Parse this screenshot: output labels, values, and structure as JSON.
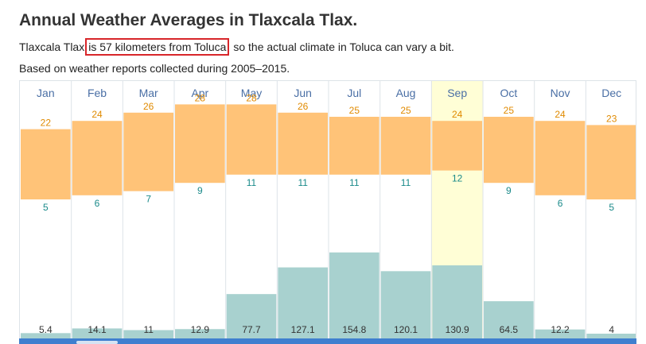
{
  "page": {
    "title": "Annual Weather Averages in Tlaxcala Tlax.",
    "line1_prefix": "Tlaxcala Tlax",
    "line1_link": "is 57 kilometers from Toluca",
    "line1_suffix": " so the actual climate in Toluca can vary a bit.",
    "line2": "Based on weather reports collected during 2005–2015."
  },
  "chart_data": {
    "type": "bar",
    "categories": [
      "Jan",
      "Feb",
      "Mar",
      "Apr",
      "May",
      "Jun",
      "Jul",
      "Aug",
      "Sep",
      "Oct",
      "Nov",
      "Dec"
    ],
    "highlighted_category": "Sep",
    "series": [
      {
        "values": [
          22,
          24,
          26,
          28,
          28,
          26,
          25,
          25,
          24,
          25,
          24,
          23
        ]
      },
      {
        "values": [
          5,
          6,
          7,
          9,
          11,
          11,
          11,
          11,
          12,
          9,
          6,
          5
        ]
      },
      {
        "values": [
          5.4,
          14.1,
          11,
          12.9,
          77.7,
          127.1,
          154.8,
          120.1,
          130.9,
          64.5,
          12.2,
          4
        ]
      }
    ],
    "colors": {
      "temp_band": "#ffc378",
      "high_label": "#e08a00",
      "low_label": "#1a8a8a",
      "precip_bar": "#a8d1cf",
      "highlight_column": "#fffed6",
      "month_label": "#4a6fa5",
      "grid": "#dde3e8"
    }
  }
}
